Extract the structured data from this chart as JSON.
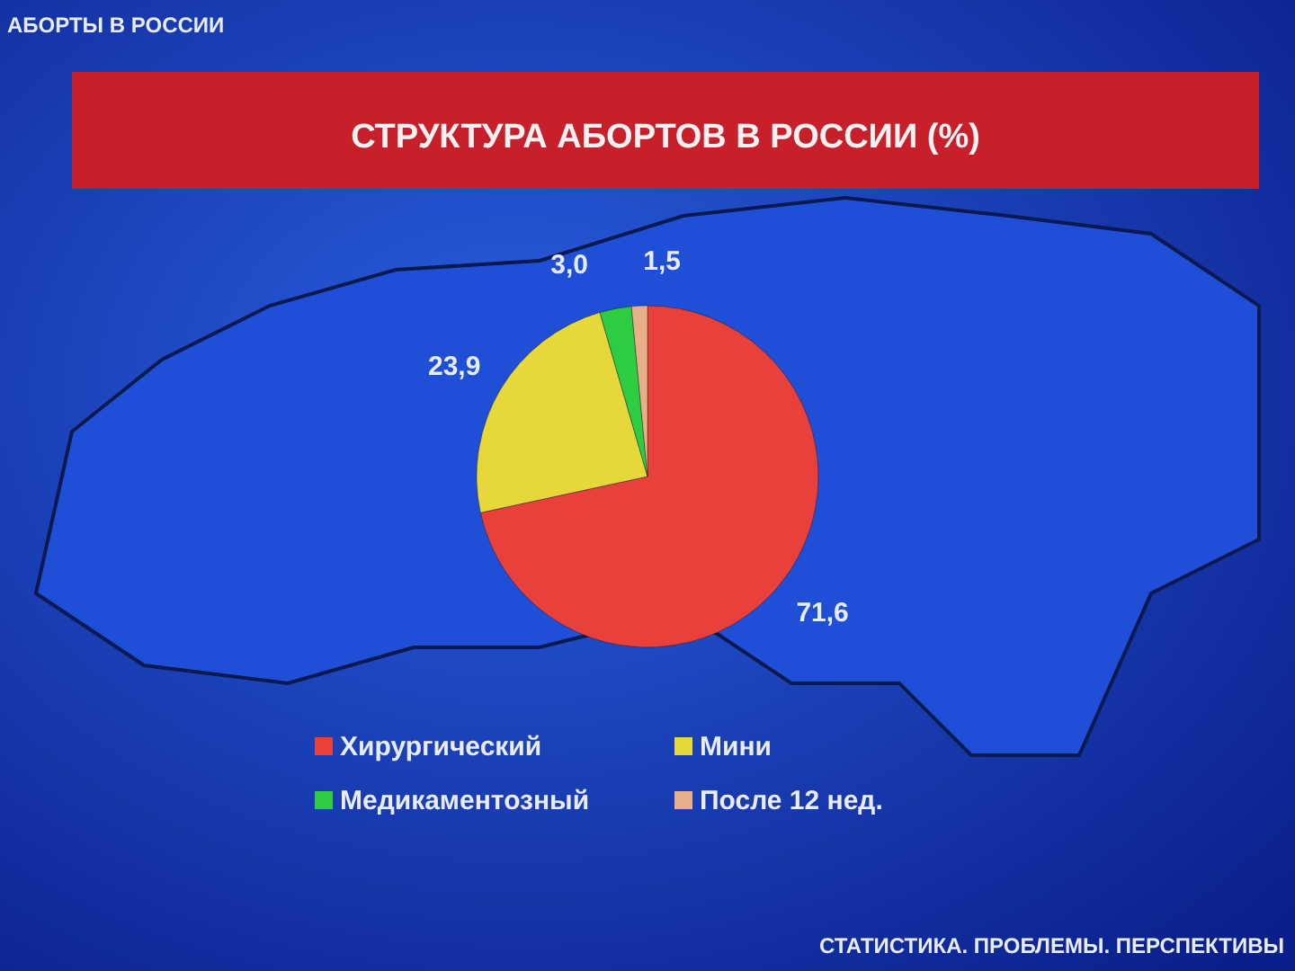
{
  "chart_data": {
    "type": "pie",
    "title": "СТРУКТУРА АБОРТОВ В РОССИИ (%)",
    "categories": [
      "Хирургический",
      "Мини",
      "Медикаментозный",
      "После 12 нед."
    ],
    "values": [
      71.6,
      23.9,
      3.0,
      1.5
    ],
    "colors": [
      "#e8403a",
      "#e6d83a",
      "#2ecc40",
      "#e8b08a"
    ],
    "value_labels": [
      "71,6",
      "23,9",
      "3,0",
      "1,5"
    ],
    "legend": "bottom",
    "annotations": [
      "АБОРТЫ В РОССИИ",
      "СТАТИСТИКА. ПРОБЛЕМЫ. ПЕРСПЕКТИВЫ"
    ]
  }
}
